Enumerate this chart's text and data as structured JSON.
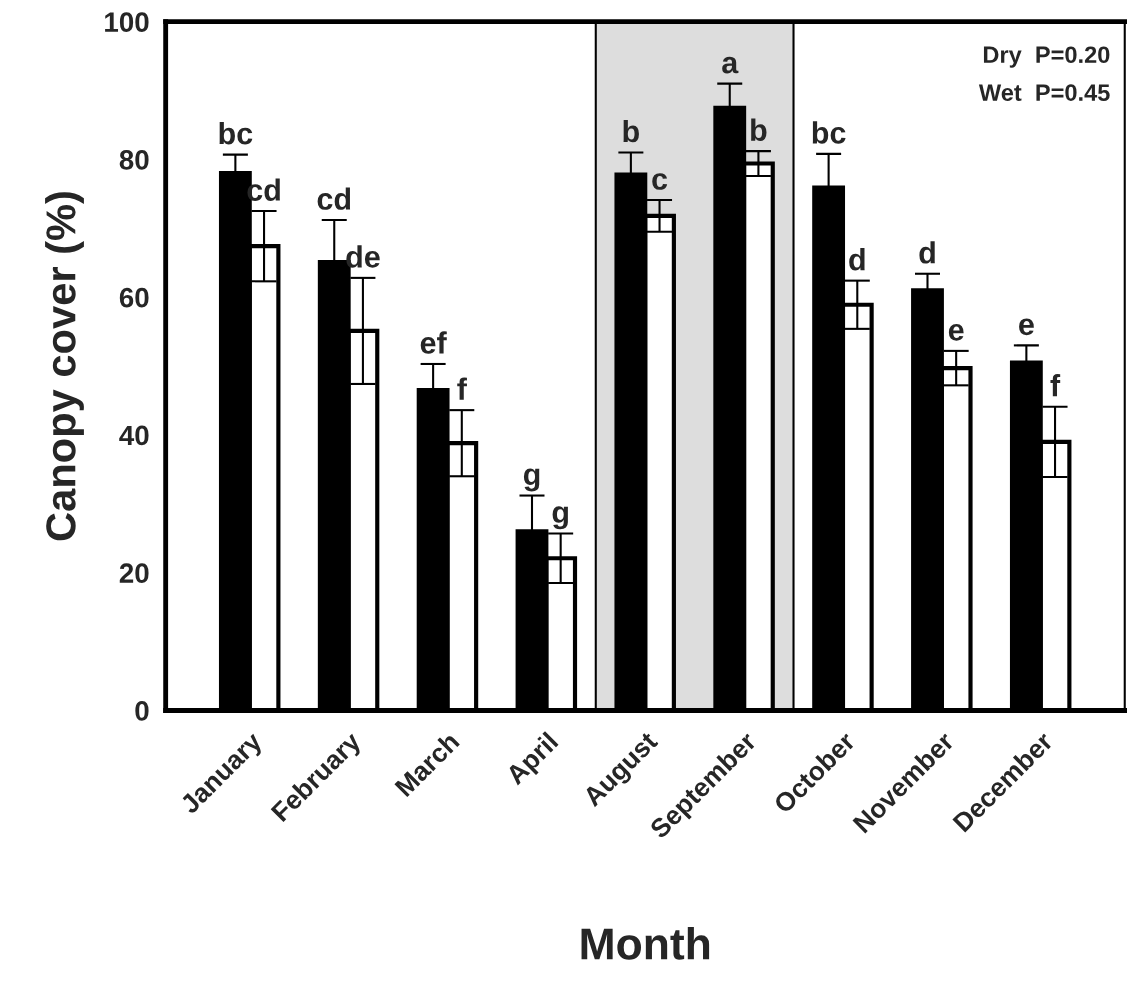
{
  "chart_data": {
    "type": "bar",
    "xlabel": "Month",
    "ylabel": "Canopy cover (%)",
    "categories": [
      "January",
      "February",
      "March",
      "April",
      "August",
      "September",
      "October",
      "November",
      "December"
    ],
    "series": [
      {
        "color": "#000000",
        "values": [
          78.0,
          65.1,
          46.5,
          26.0,
          77.8,
          87.5,
          75.9,
          61.0,
          50.5
        ],
        "errors": [
          2.7,
          6.1,
          3.8,
          5.2,
          3.2,
          3.5,
          4.9,
          2.4,
          2.5
        ],
        "value_labels": [
          "bc",
          "cd",
          "ef",
          "g",
          "b",
          "a",
          "bc",
          "d",
          "e"
        ]
      },
      {
        "color": "#ffffff",
        "values": [
          67.4,
          55.1,
          38.8,
          22.1,
          71.8,
          79.4,
          58.9,
          49.7,
          39.0
        ],
        "errors": [
          5.1,
          7.7,
          4.8,
          3.6,
          2.3,
          1.8,
          3.5,
          2.5,
          5.1
        ],
        "value_labels": [
          "cd",
          "de",
          "f",
          "g",
          "c",
          "b",
          "d",
          "e",
          "f"
        ]
      }
    ],
    "ylim": [
      0,
      100
    ],
    "yticks": [
      0,
      20,
      40,
      60,
      80,
      100
    ],
    "bands": [
      {
        "axis": "x",
        "from": "August",
        "to": "September",
        "color": "#dddddd"
      }
    ],
    "annotations": [
      "Dry  P=0.20",
      "Wet  P=0.45"
    ],
    "grid": false,
    "legend": false
  }
}
